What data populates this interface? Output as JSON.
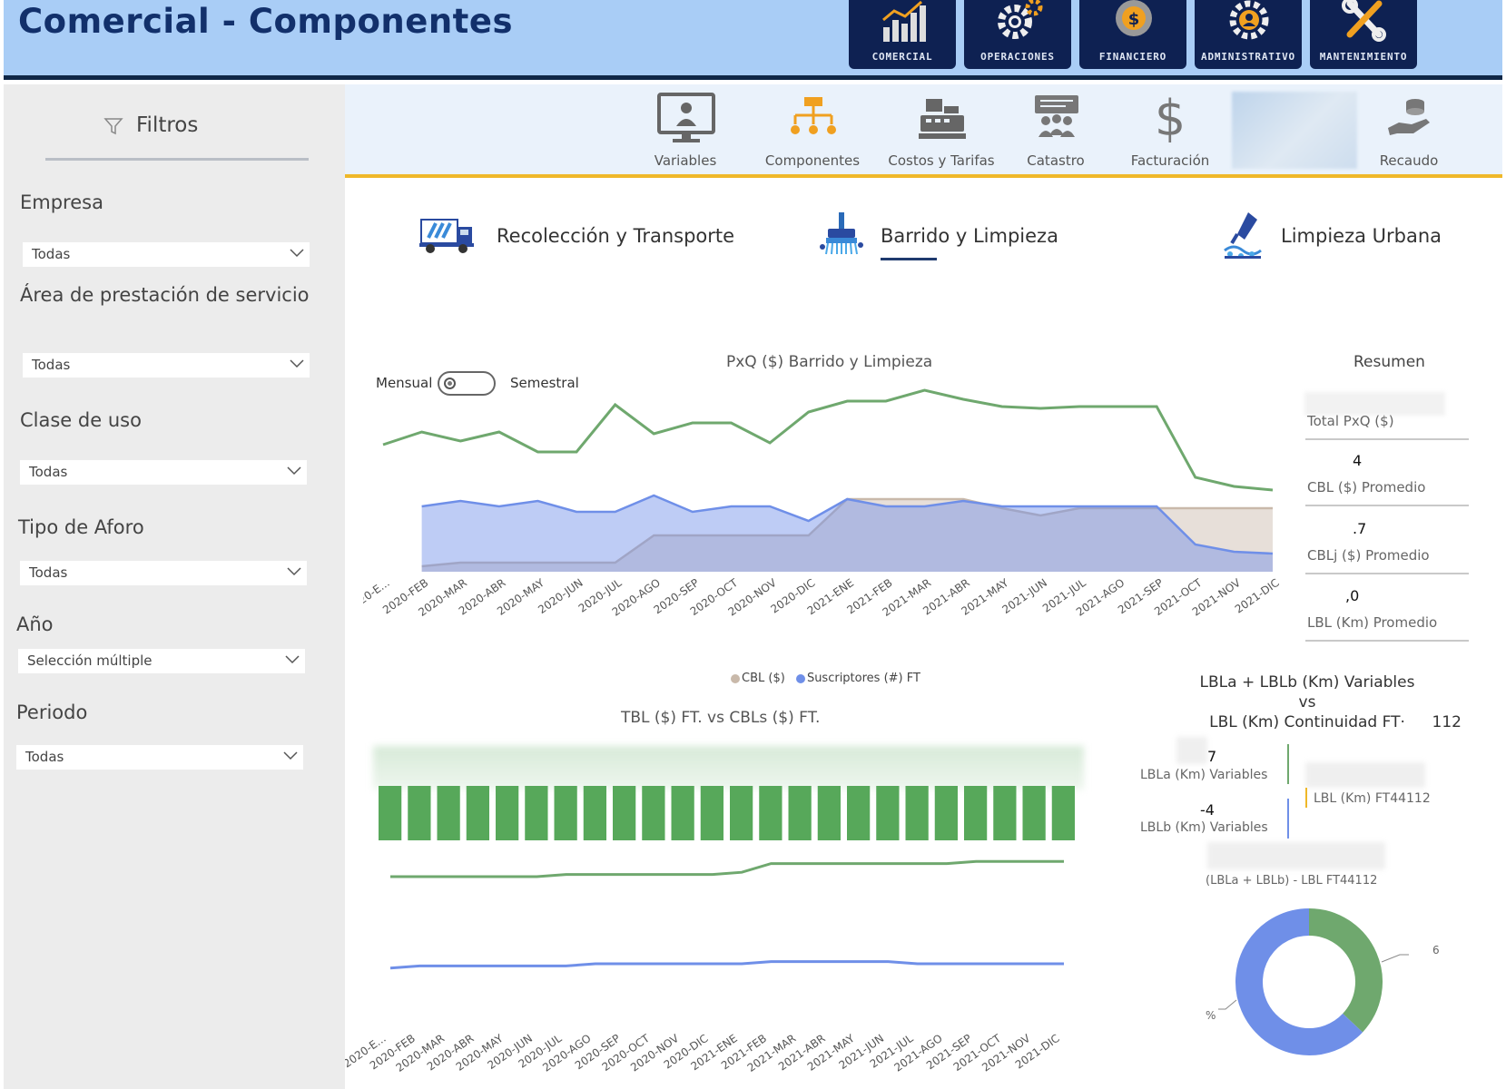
{
  "header": {
    "title": "Comercial - Componentes",
    "nav": [
      {
        "label": "COMERCIAL",
        "icon": "bar-chart-icon"
      },
      {
        "label": "OPERACIONES",
        "icon": "gears-icon"
      },
      {
        "label": "FINANCIERO",
        "icon": "coin-icon"
      },
      {
        "label": "ADMINISTRATIVO",
        "icon": "user-gear-icon"
      },
      {
        "label": "MANTENIMIENTO",
        "icon": "wrench-icon"
      }
    ]
  },
  "sidebar": {
    "title": "Filtros",
    "filters": [
      {
        "label": "Empresa",
        "value": "Todas"
      },
      {
        "label": "Área de prestación de servicio",
        "value": "Todas"
      },
      {
        "label": "Clase de uso",
        "value": "Todas"
      },
      {
        "label": "Tipo de Aforo",
        "value": "Todas"
      },
      {
        "label": "Año",
        "value": "Selección múltiple"
      },
      {
        "label": "Periodo",
        "value": "Todas"
      }
    ]
  },
  "subnav": [
    {
      "label": "Variables",
      "icon": "monitor-user-icon"
    },
    {
      "label": "Componentes",
      "icon": "org-chart-icon"
    },
    {
      "label": "Costos y Tarifas",
      "icon": "cash-register-icon"
    },
    {
      "label": "Catastro",
      "icon": "users-board-icon"
    },
    {
      "label": "Facturación",
      "icon": "dollar-icon"
    },
    {
      "label": "Recaudo",
      "icon": "hand-coins-icon"
    }
  ],
  "segments": [
    {
      "label": "Recolección y Transporte",
      "icon": "garbage-truck-icon"
    },
    {
      "label": "Barrido y Limpieza",
      "icon": "sweeper-icon"
    },
    {
      "label": "Limpieza Urbana",
      "icon": "pressure-washer-icon"
    }
  ],
  "toggle": {
    "left": "Mensual",
    "right": "Semestral"
  },
  "colors": {
    "green": "#6fa86e",
    "blue": "#6f8fe8",
    "beige": "#c9b9aa",
    "bar_green": "#57a85a",
    "accent_yellow": "#efb829",
    "navy": "#0e2152"
  },
  "chart_data": [
    {
      "type": "line",
      "title": "PxQ ($) Barrido y Limpieza",
      "categories": [
        "2020-E...",
        "2020-FEB",
        "2020-MAR",
        "2020-ABR",
        "2020-MAY",
        "2020-JUN",
        "2020-JUL",
        "2020-AGO",
        "2020-SEP",
        "2020-OCT",
        "2020-NOV",
        "2020-DIC",
        "2021-ENE",
        "2021-FEB",
        "2021-MAR",
        "2021-ABR",
        "2021-MAY",
        "2021-JUN",
        "2021-JUL",
        "2021-AGO",
        "2021-SEP",
        "2021-OCT",
        "2021-NOV",
        "2021-DIC"
      ],
      "ylim": [
        0,
        100
      ],
      "series": [
        {
          "name": "",
          "kind": "line",
          "color": "#6fa86e",
          "values": [
            70,
            77,
            72,
            77,
            66,
            66,
            92,
            76,
            82,
            82,
            71,
            88,
            94,
            94,
            100,
            95,
            91,
            90,
            91,
            91,
            91,
            52,
            47,
            45
          ]
        },
        {
          "name": "Suscriptores (#) FT",
          "kind": "area",
          "color": "#6f8fe8",
          "values": [
            null,
            36,
            39,
            36,
            39,
            33,
            33,
            42,
            33,
            36,
            36,
            28,
            40,
            36,
            36,
            39,
            36,
            36,
            36,
            36,
            36,
            15,
            11,
            10
          ]
        },
        {
          "name": "CBL ($)",
          "kind": "area",
          "color": "#c9b9aa",
          "values": [
            null,
            3,
            5,
            5,
            5,
            5,
            5,
            20,
            20,
            20,
            20,
            20,
            40,
            40,
            40,
            40,
            35,
            31,
            35,
            35,
            35,
            35,
            35,
            35
          ]
        }
      ],
      "legend": [
        "CBL ($)",
        "Suscriptores (#) FT"
      ]
    },
    {
      "type": "bar",
      "title": "TBL ($) FT. vs CBLs ($) FT.",
      "categories": [
        "2020-E...",
        "2020-FEB",
        "2020-MAR",
        "2020-ABR",
        "2020-MAY",
        "2020-JUN",
        "2020-JUL",
        "2020-AGO",
        "2020-SEP",
        "2020-OCT",
        "2020-NOV",
        "2020-DIC",
        "2021-ENE",
        "2021-FEB",
        "2021-MAR",
        "2021-ABR",
        "2021-MAY",
        "2021-JUN",
        "2021-JUL",
        "2021-AGO",
        "2021-SEP",
        "2021-OCT",
        "2021-NOV",
        "2021-DIC"
      ],
      "ylim": [
        0,
        100
      ],
      "series": [
        {
          "name": "",
          "kind": "bar",
          "color": "#57a85a",
          "values": [
            100,
            100,
            100,
            100,
            100,
            100,
            100,
            100,
            100,
            100,
            100,
            100,
            100,
            100,
            100,
            100,
            100,
            100,
            100,
            100,
            100,
            100,
            100,
            100
          ]
        },
        {
          "name": "",
          "kind": "line",
          "color": "#6fa86e",
          "values": [
            60,
            60,
            60,
            60,
            60,
            60,
            61,
            61,
            61,
            61,
            61,
            61,
            62,
            66,
            66,
            66,
            66,
            66,
            66,
            66,
            67,
            67,
            67,
            67
          ]
        },
        {
          "name": "",
          "kind": "line",
          "color": "#6f8fe8",
          "values": [
            18,
            19,
            19,
            19,
            19,
            19,
            19,
            20,
            20,
            20,
            20,
            20,
            20,
            21,
            21,
            21,
            21,
            21,
            20,
            20,
            20,
            20,
            20,
            20
          ]
        }
      ]
    },
    {
      "type": "pie",
      "title": "(LBLa + LBLb) - LBL FT44112",
      "values": [
        37,
        63
      ],
      "colors": [
        "#6fa86e",
        "#6f8fe8"
      ]
    }
  ],
  "resumen": {
    "title": "Resumen",
    "cards": [
      {
        "label": "Total PxQ ($)",
        "value": ""
      },
      {
        "label": "CBL ($) Promedio",
        "value": "4"
      },
      {
        "label": "CBLj ($) Promedio",
        "value": ".7"
      },
      {
        "label": "LBL (Km) Promedio",
        "value": ",0"
      }
    ]
  },
  "lbl_compare": {
    "title_line1": "LBLa + LBLb (Km) Variables",
    "title_line2": "vs",
    "title_line3": "LBL (Km) Continuidad FT·",
    "title_suffix": "112",
    "lbla_value": "7",
    "lbla_label": "LBLa (Km) Variables",
    "lblb_value": "-4",
    "lblb_label": "LBLb (Km) Variables",
    "lbl_label": "LBL (Km) FT44112",
    "diff_label": "(LBLa + LBLb) - LBL FT44112",
    "donut_label_left": "%",
    "donut_label_right": "6"
  }
}
